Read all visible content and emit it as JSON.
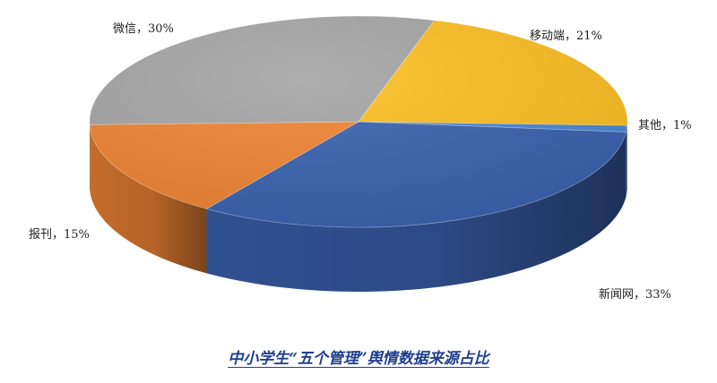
{
  "chart_data": {
    "type": "pie",
    "title": "中小学生“五个管理”舆情数据来源占比",
    "slices": [
      {
        "label": "其他，1%",
        "name": "其他",
        "value": 1,
        "color": "#4a86d6"
      },
      {
        "label": "新闻网，33%",
        "name": "新闻网",
        "value": 33,
        "color": "#3a62b0"
      },
      {
        "label": "报刊，15%",
        "name": "报刊",
        "value": 15,
        "color": "#f08433"
      },
      {
        "label": "微信，30%",
        "name": "微信",
        "value": 30,
        "color": "#a5a5a5"
      },
      {
        "label": "移动端，21%",
        "name": "移动端",
        "value": 21,
        "color": "#fdbf22"
      }
    ],
    "style": "3d-pie",
    "legend": "none"
  }
}
